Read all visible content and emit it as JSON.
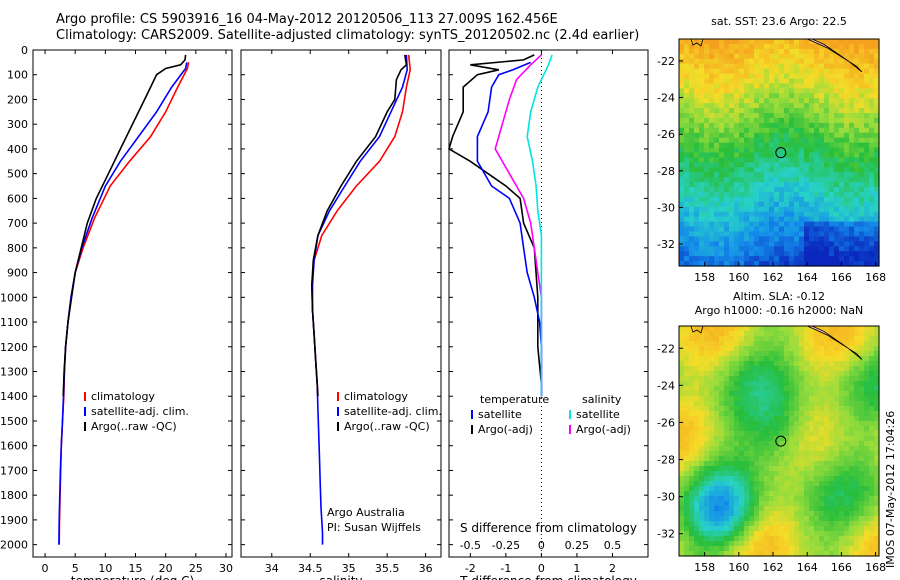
{
  "header": {
    "line1": "Argo profile: CS 5903916_16 04-May-2012 20120506_113 27.009S 162.456E",
    "line2": "Climatology: CARS2009. Satellite-adjusted climatology: synTS_20120502.nc (2.4d earlier)"
  },
  "colors": {
    "clim": "#ff0000",
    "sat": "#0000ff",
    "argo": "#000000",
    "cyan": "#00e5e5",
    "magenta": "#ff00ff"
  },
  "chart_data": [
    {
      "type": "line",
      "xlabel": "temperature (deg C)",
      "xlim": [
        -2,
        31
      ],
      "ylim": [
        2050,
        0
      ],
      "xticks": [
        0,
        5,
        10,
        15,
        20,
        25,
        30
      ],
      "yticks": [
        0,
        100,
        200,
        300,
        400,
        500,
        600,
        700,
        800,
        900,
        1000,
        1100,
        1200,
        1300,
        1400,
        1500,
        1600,
        1700,
        1800,
        1900,
        2000
      ],
      "legend": [
        "climatology",
        "satellite-adj. clim.",
        "Argo(..raw -QC)"
      ],
      "series": [
        {
          "key": "clim",
          "points": [
            [
              23.8,
              50
            ],
            [
              23.6,
              75
            ],
            [
              22,
              150
            ],
            [
              20,
              250
            ],
            [
              17.5,
              350
            ],
            [
              14,
              450
            ],
            [
              10.8,
              550
            ],
            [
              8.2,
              680
            ],
            [
              6.3,
              800
            ],
            [
              5,
              900
            ],
            [
              4.3,
              1000
            ],
            [
              3.8,
              1100
            ],
            [
              3.4,
              1200
            ],
            [
              3.2,
              1300
            ],
            [
              3.1,
              1400
            ],
            [
              2.9,
              1500
            ],
            [
              2.7,
              1600
            ],
            [
              2.6,
              1700
            ],
            [
              2.5,
              1800
            ],
            [
              2.4,
              1900
            ],
            [
              2.35,
              2000
            ]
          ]
        },
        {
          "key": "sat",
          "points": [
            [
              23.5,
              50
            ],
            [
              23.3,
              75
            ],
            [
              21,
              150
            ],
            [
              18.5,
              250
            ],
            [
              15.5,
              350
            ],
            [
              12.5,
              450
            ],
            [
              10,
              550
            ],
            [
              7.8,
              680
            ],
            [
              6.1,
              800
            ],
            [
              5,
              900
            ],
            [
              4.3,
              1000
            ],
            [
              3.8,
              1100
            ],
            [
              3.4,
              1200
            ],
            [
              3.2,
              1300
            ],
            [
              3.05,
              1400
            ],
            [
              2.9,
              1500
            ],
            [
              2.7,
              1600
            ],
            [
              2.55,
              1700
            ],
            [
              2.45,
              1800
            ],
            [
              2.35,
              1900
            ],
            [
              2.3,
              2000
            ]
          ]
        },
        {
          "key": "argo",
          "points": [
            [
              23.3,
              20
            ],
            [
              23.2,
              40
            ],
            [
              22.5,
              60
            ],
            [
              20,
              75
            ],
            [
              18.5,
              100
            ],
            [
              17.5,
              150
            ],
            [
              16.5,
              200
            ],
            [
              14.5,
              300
            ],
            [
              12.5,
              400
            ],
            [
              10.5,
              500
            ],
            [
              8.5,
              600
            ],
            [
              7,
              700
            ],
            [
              6,
              800
            ],
            [
              5,
              900
            ],
            [
              4.4,
              1000
            ],
            [
              3.8,
              1100
            ],
            [
              3.4,
              1200
            ],
            [
              3.15,
              1300
            ],
            [
              3,
              1400
            ]
          ]
        }
      ]
    },
    {
      "type": "line",
      "xlabel": "salinity",
      "xlim": [
        33.6,
        36.2
      ],
      "ylim": [
        2050,
        0
      ],
      "xticks": [
        34,
        34.5,
        35,
        35.5,
        36
      ],
      "legend": [
        "climatology",
        "satellite-adj. clim.",
        "Argo(..raw -QC)"
      ],
      "annotations": [
        "Argo Australia",
        "PI: Susan Wijffels"
      ],
      "series": [
        {
          "key": "clim",
          "points": [
            [
              35.78,
              20
            ],
            [
              35.8,
              80
            ],
            [
              35.75,
              150
            ],
            [
              35.7,
              250
            ],
            [
              35.6,
              350
            ],
            [
              35.4,
              450
            ],
            [
              35.1,
              550
            ],
            [
              34.85,
              650
            ],
            [
              34.65,
              750
            ],
            [
              34.55,
              850
            ],
            [
              34.52,
              950
            ],
            [
              34.53,
              1050
            ],
            [
              34.55,
              1150
            ],
            [
              34.57,
              1250
            ],
            [
              34.59,
              1350
            ],
            [
              34.6,
              1400
            ]
          ]
        },
        {
          "key": "sat",
          "points": [
            [
              35.75,
              20
            ],
            [
              35.76,
              80
            ],
            [
              35.7,
              150
            ],
            [
              35.55,
              250
            ],
            [
              35.4,
              350
            ],
            [
              35.15,
              450
            ],
            [
              34.95,
              550
            ],
            [
              34.75,
              650
            ],
            [
              34.6,
              750
            ],
            [
              34.55,
              850
            ],
            [
              34.53,
              950
            ],
            [
              34.53,
              1050
            ],
            [
              34.55,
              1150
            ],
            [
              34.57,
              1250
            ],
            [
              34.59,
              1350
            ],
            [
              34.6,
              1450
            ],
            [
              34.61,
              1550
            ],
            [
              34.62,
              1650
            ],
            [
              34.63,
              1750
            ],
            [
              34.64,
              1850
            ],
            [
              34.66,
              1950
            ],
            [
              34.66,
              2000
            ]
          ]
        },
        {
          "key": "argo",
          "points": [
            [
              35.73,
              20
            ],
            [
              35.75,
              60
            ],
            [
              35.68,
              80
            ],
            [
              35.62,
              120
            ],
            [
              35.6,
              200
            ],
            [
              35.5,
              250
            ],
            [
              35.35,
              350
            ],
            [
              35.1,
              450
            ],
            [
              34.9,
              550
            ],
            [
              34.72,
              650
            ],
            [
              34.6,
              750
            ],
            [
              34.54,
              850
            ],
            [
              34.52,
              950
            ],
            [
              34.53,
              1050
            ],
            [
              34.55,
              1150
            ],
            [
              34.57,
              1250
            ],
            [
              34.59,
              1350
            ],
            [
              34.6,
              1400
            ]
          ]
        }
      ]
    },
    {
      "type": "line",
      "xlabel": "T difference from climatology",
      "xlabel_top": "S difference from climatology",
      "xlim": [
        -2.6,
        3.0
      ],
      "ylim": [
        2050,
        0
      ],
      "xticks": [
        -2,
        -1,
        0,
        1,
        2
      ],
      "xticks_top_labels": [
        "-0.5",
        "-0.25",
        "0",
        "0.25",
        "0.5"
      ],
      "xticks_top": [
        -2,
        -1,
        0,
        1,
        2
      ],
      "legend_T": [
        "temperature",
        "satellite",
        "Argo(-adj)"
      ],
      "legend_S": [
        "salinity",
        "satellite",
        "Argo(-adj)"
      ],
      "series": [
        {
          "key": "argo",
          "points": [
            [
              -0.2,
              20
            ],
            [
              -0.5,
              40
            ],
            [
              -2,
              60
            ],
            [
              -1.2,
              80
            ],
            [
              -1.8,
              100
            ],
            [
              -2.2,
              150
            ],
            [
              -2.2,
              250
            ],
            [
              -2.5,
              350
            ],
            [
              -2.6,
              400
            ],
            [
              -2,
              450
            ],
            [
              -1.5,
              500
            ],
            [
              -1,
              550
            ],
            [
              -0.6,
              600
            ],
            [
              -0.5,
              700
            ],
            [
              -0.2,
              800
            ],
            [
              -0.1,
              1000
            ],
            [
              -0.1,
              1200
            ],
            [
              0,
              1350
            ],
            [
              0,
              1400
            ]
          ]
        },
        {
          "key": "sat",
          "points": [
            [
              -0.3,
              50
            ],
            [
              -0.8,
              80
            ],
            [
              -1.2,
              100
            ],
            [
              -1.4,
              150
            ],
            [
              -1.5,
              250
            ],
            [
              -1.8,
              350
            ],
            [
              -1.8,
              450
            ],
            [
              -1.4,
              550
            ],
            [
              -0.9,
              600
            ],
            [
              -0.6,
              700
            ],
            [
              -0.5,
              800
            ],
            [
              -0.4,
              900
            ],
            [
              -0.2,
              1000
            ],
            [
              -0.05,
              1100
            ],
            [
              0,
              1200
            ],
            [
              0,
              1400
            ]
          ]
        },
        {
          "key": "magenta",
          "points": [
            [
              0,
              20
            ],
            [
              -0.3,
              60
            ],
            [
              -0.7,
              120
            ],
            [
              -0.9,
              200
            ],
            [
              -1.1,
              300
            ],
            [
              -1.3,
              400
            ],
            [
              -0.9,
              500
            ],
            [
              -0.5,
              600
            ],
            [
              -0.3,
              700
            ],
            [
              -0.2,
              800
            ],
            [
              -0.1,
              900
            ],
            [
              0,
              1000
            ],
            [
              0,
              1400
            ]
          ]
        },
        {
          "key": "cyan",
          "points": [
            [
              0.3,
              20
            ],
            [
              0.2,
              60
            ],
            [
              -0.1,
              150
            ],
            [
              -0.3,
              250
            ],
            [
              -0.4,
              350
            ],
            [
              -0.25,
              450
            ],
            [
              -0.15,
              550
            ],
            [
              -0.1,
              650
            ],
            [
              0,
              750
            ],
            [
              0,
              1000
            ],
            [
              0,
              1400
            ]
          ]
        }
      ]
    },
    {
      "type": "heatmap",
      "title": "sat. SST: 23.6 Argo: 22.5",
      "xlim": [
        156.5,
        168.2
      ],
      "ylim": [
        -33.2,
        -20.8
      ],
      "xticks": [
        158,
        160,
        162,
        164,
        166,
        168
      ],
      "yticks": [
        -22,
        -24,
        -26,
        -28,
        -30,
        -32
      ],
      "argo_position": [
        162.456,
        -27.009
      ]
    },
    {
      "type": "heatmap",
      "title": "Altim. SLA: -0.12",
      "subtitle": "Argo h1000: -0.16 h2000: NaN",
      "xlim": [
        156.5,
        168.2
      ],
      "ylim": [
        -33.2,
        -20.8
      ],
      "xticks": [
        158,
        160,
        162,
        164,
        166,
        168
      ],
      "yticks": [
        -22,
        -24,
        -26,
        -28,
        -30,
        -32
      ],
      "argo_position": [
        162.456,
        -27.009
      ]
    }
  ],
  "footer": {
    "stamp": "IMOS 07-May-2012 17:04:26"
  }
}
